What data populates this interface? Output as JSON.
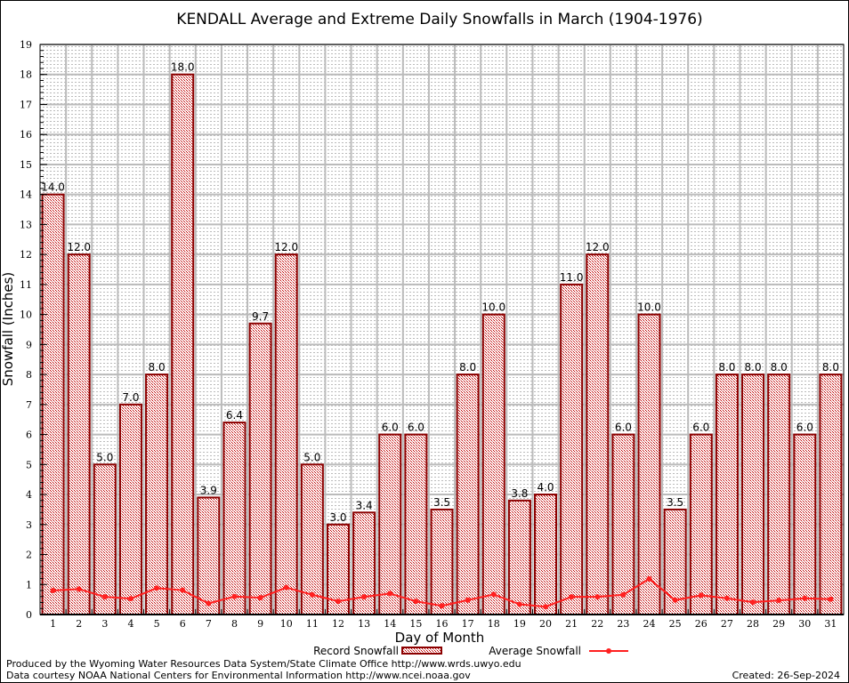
{
  "chart_data": {
    "type": "bar",
    "title": "KENDALL Average and Extreme Daily Snowfalls in March (1904-1976)",
    "xlabel": "Day of Month",
    "ylabel": "Snowfall (Inches)",
    "ylim": [
      0,
      19
    ],
    "yticks": [
      0,
      1,
      2,
      3,
      4,
      5,
      6,
      7,
      8,
      9,
      10,
      11,
      12,
      13,
      14,
      15,
      16,
      17,
      18,
      19
    ],
    "grid": true,
    "legend_placement": "bottom",
    "categories": [
      1,
      2,
      3,
      4,
      5,
      6,
      7,
      8,
      9,
      10,
      11,
      12,
      13,
      14,
      15,
      16,
      17,
      18,
      19,
      20,
      21,
      22,
      23,
      24,
      25,
      26,
      27,
      28,
      29,
      30,
      31
    ],
    "series": [
      {
        "name": "Record Snowfall",
        "type": "bar",
        "color": "#b00000",
        "values": [
          14.0,
          12.0,
          5.0,
          7.0,
          8.0,
          18.0,
          3.9,
          6.4,
          9.7,
          12.0,
          5.0,
          3.0,
          3.4,
          6.0,
          6.0,
          3.5,
          8.0,
          10.0,
          3.8,
          4.0,
          11.0,
          12.0,
          6.0,
          10.0,
          3.5,
          6.0,
          8.0,
          8.0,
          8.0,
          6.0,
          8.0
        ]
      },
      {
        "name": "Average Snowfall",
        "type": "line",
        "color": "#ff2020",
        "values": [
          0.8,
          0.85,
          0.59,
          0.53,
          0.88,
          0.81,
          0.37,
          0.6,
          0.56,
          0.9,
          0.66,
          0.44,
          0.59,
          0.7,
          0.44,
          0.29,
          0.48,
          0.67,
          0.34,
          0.26,
          0.59,
          0.59,
          0.66,
          1.19,
          0.48,
          0.64,
          0.54,
          0.41,
          0.47,
          0.54,
          0.51
        ]
      }
    ]
  },
  "footer": {
    "line1": "Produced by the Wyoming Water Resources Data System/State Climate Office http://www.wrds.uwyo.edu",
    "line2": "Data courtesy NOAA National Centers for Environmental Information http://www.ncei.noaa.gov",
    "created": "Created: 26-Sep-2024"
  }
}
